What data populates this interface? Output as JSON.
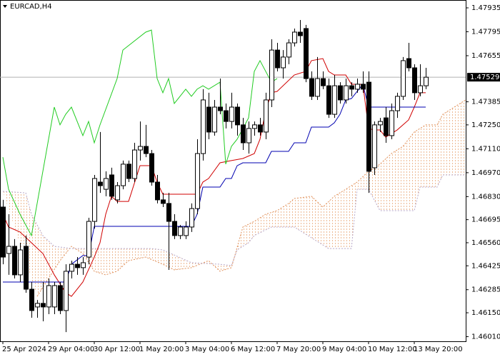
{
  "chart_data": {
    "type": "candlestick",
    "title": "EURCAD,H4",
    "categories": [
      "25 Apr 2024",
      null,
      null,
      null,
      null,
      null,
      null,
      null,
      "29 Apr 04:00",
      null,
      null,
      null,
      null,
      null,
      null,
      null,
      "30 Apr 12:00",
      null,
      null,
      null,
      null,
      null,
      null,
      null,
      "1 May 20:00",
      null,
      null,
      null,
      null,
      null,
      null,
      null,
      "3 May 04:00",
      null,
      null,
      null,
      null,
      null,
      null,
      null,
      "6 May 12:00",
      null,
      null,
      null,
      null,
      null,
      null,
      null,
      "7 May 20:00",
      null,
      null,
      null,
      null,
      null,
      null,
      null,
      "9 May 04:00",
      null,
      null,
      null,
      null,
      null,
      null,
      null,
      "10 May 12:00",
      null,
      null,
      null,
      null,
      null,
      null,
      null,
      "13 May 20:00",
      null,
      null
    ],
    "open": [
      1.46769,
      1.46497,
      1.46539,
      1.46372,
      1.46539,
      1.46288,
      1.46184,
      1.46205,
      1.46184,
      1.46184,
      1.46309,
      1.46163,
      1.46393,
      1.46434,
      1.46414,
      1.46476,
      1.46685,
      1.46915,
      1.46873,
      1.46957,
      1.46811,
      1.46894,
      1.4702,
      1.46936,
      1.47103,
      1.47124,
      1.47082,
      1.46915,
      1.46811,
      1.4679,
      1.46685,
      1.46602,
      1.46602,
      1.46652,
      1.4676,
      1.47082,
      1.47354,
      1.47208,
      1.47354,
      1.47333,
      1.4727,
      1.47354,
      1.4725,
      1.47145,
      1.47229,
      1.4725,
      1.47208,
      1.47396,
      1.47688,
      1.47584,
      1.47647,
      1.4773,
      1.47793,
      1.47814,
      1.47521,
      1.47417,
      1.47521,
      1.47479,
      1.47312,
      1.47479,
      1.47396,
      1.47479,
      1.47459,
      1.47488,
      1.475,
      1.46999,
      1.4725,
      1.47291,
      1.47187,
      1.47333,
      1.47417,
      1.47638,
      1.47584,
      1.47438,
      1.47479
    ],
    "high": [
      1.46811,
      1.46727,
      1.46581,
      1.4656,
      1.46602,
      1.4633,
      1.46225,
      1.4633,
      1.46351,
      1.4633,
      1.4633,
      1.46434,
      1.46455,
      1.46476,
      1.46476,
      1.46706,
      1.46957,
      1.47208,
      1.46978,
      1.46999,
      1.46915,
      1.47041,
      1.47041,
      1.47145,
      1.4727,
      1.4725,
      1.47103,
      1.46957,
      1.46852,
      1.46852,
      1.46727,
      1.46664,
      1.46685,
      1.4679,
      1.47166,
      1.47459,
      1.47438,
      1.47396,
      1.47521,
      1.47375,
      1.47438,
      1.47375,
      1.47291,
      1.4727,
      1.4727,
      1.47291,
      1.47438,
      1.47751,
      1.4773,
      1.47688,
      1.47751,
      1.47814,
      1.47864,
      1.47835,
      1.47563,
      1.47647,
      1.47563,
      1.47521,
      1.47542,
      1.475,
      1.47521,
      1.475,
      1.47521,
      1.47563,
      1.47563,
      1.4727,
      1.47291,
      1.47354,
      1.47375,
      1.47438,
      1.47647,
      1.4773,
      1.47605,
      1.47605,
      1.47584
    ],
    "low": [
      1.46434,
      1.46372,
      1.46351,
      1.4633,
      1.46267,
      1.46121,
      1.46121,
      1.461,
      1.46142,
      1.46142,
      1.46142,
      1.46037,
      1.46351,
      1.46372,
      1.46372,
      1.46434,
      1.46643,
      1.46852,
      1.46832,
      1.46811,
      1.4679,
      1.46873,
      1.46915,
      1.46915,
      1.47041,
      1.47061,
      1.46894,
      1.4679,
      1.46769,
      1.46401,
      1.46581,
      1.46581,
      1.46581,
      1.46623,
      1.46727,
      1.47041,
      1.47166,
      1.47187,
      1.47312,
      1.47229,
      1.47229,
      1.47187,
      1.47103,
      1.47082,
      1.47187,
      1.47187,
      1.47166,
      1.47354,
      1.47563,
      1.47521,
      1.47605,
      1.47709,
      1.4773,
      1.475,
      1.47396,
      1.47396,
      1.47459,
      1.47291,
      1.47291,
      1.47375,
      1.47375,
      1.47417,
      1.47438,
      1.47438,
      1.46852,
      1.46957,
      1.47208,
      1.47145,
      1.47166,
      1.47291,
      1.47396,
      1.47563,
      1.47396,
      1.47417,
      1.47459
    ],
    "close": [
      1.46476,
      1.46539,
      1.46372,
      1.46518,
      1.46288,
      1.46163,
      1.46205,
      1.46184,
      1.46309,
      1.46309,
      1.46163,
      1.46393,
      1.46434,
      1.46414,
      1.46443,
      1.46685,
      1.46936,
      1.46894,
      1.46936,
      1.46832,
      1.46894,
      1.4702,
      1.46936,
      1.47103,
      1.47124,
      1.47082,
      1.46915,
      1.46811,
      1.4679,
      1.46685,
      1.46602,
      1.46652,
      1.46652,
      1.4676,
      1.47082,
      1.47396,
      1.47208,
      1.47354,
      1.47333,
      1.4727,
      1.47354,
      1.4725,
      1.47145,
      1.47229,
      1.4725,
      1.47208,
      1.47396,
      1.47688,
      1.47584,
      1.47647,
      1.4773,
      1.47793,
      1.47772,
      1.47521,
      1.47417,
      1.47521,
      1.47479,
      1.47312,
      1.47479,
      1.47396,
      1.47479,
      1.47459,
      1.47488,
      1.47459,
      1.46978,
      1.4725,
      1.4727,
      1.47187,
      1.47333,
      1.47417,
      1.47626,
      1.47584,
      1.47438,
      1.47479,
      1.47529
    ],
    "up_color": "#ffffff",
    "down_color": "#000000",
    "wick_color": "#000000",
    "lines": [
      {
        "color": "#d00000",
        "x": [
          0,
          1,
          3,
          5,
          7,
          9,
          11,
          12,
          14,
          16,
          17,
          18,
          19,
          20,
          22,
          24,
          26,
          27,
          28,
          34,
          35,
          36,
          38,
          40,
          42,
          44,
          45,
          46,
          47,
          48,
          51,
          53,
          54,
          56,
          57,
          58,
          60,
          61,
          63,
          64,
          65,
          66,
          67,
          69,
          71,
          72,
          73,
          74
        ],
        "values": [
          1.46727,
          1.46652,
          1.46623,
          1.4656,
          1.46497,
          1.46372,
          1.46267,
          1.46246,
          1.4633,
          1.46476,
          1.4656,
          1.46727,
          1.46832,
          1.46802,
          1.46802,
          1.47011,
          1.47011,
          1.46915,
          1.46844,
          1.46844,
          1.46915,
          1.46936,
          1.47028,
          1.47041,
          1.47053,
          1.47082,
          1.47166,
          1.47333,
          1.47438,
          1.47446,
          1.47542,
          1.47563,
          1.47626,
          1.47638,
          1.47563,
          1.47542,
          1.47542,
          1.47488,
          1.47488,
          1.47229,
          1.4722,
          1.4722,
          1.47178,
          1.4722,
          1.47279,
          1.47354,
          1.47438,
          1.47438
        ]
      },
      {
        "color": "#0000b0",
        "x": [
          0,
          11,
          12,
          14,
          15,
          16,
          33,
          34,
          35,
          38,
          39,
          40,
          41,
          42,
          46,
          47,
          50,
          51,
          53,
          54,
          57,
          58,
          59,
          60,
          61,
          63,
          64,
          74
        ],
        "values": [
          1.4633,
          1.4633,
          1.46434,
          1.46485,
          1.46485,
          1.46656,
          1.46656,
          1.46727,
          1.46886,
          1.46886,
          1.46936,
          1.46936,
          1.47011,
          1.47028,
          1.47028,
          1.47095,
          1.47095,
          1.47145,
          1.47145,
          1.47237,
          1.47237,
          1.47262,
          1.47312,
          1.47396,
          1.47404,
          1.47488,
          1.47354,
          1.47354
        ]
      },
      {
        "color": "#22cc22",
        "x": [
          0,
          1,
          3,
          5,
          9,
          10,
          11,
          12,
          14,
          15,
          16,
          17,
          20,
          21,
          25,
          26,
          27,
          28,
          29,
          30,
          32,
          33,
          34,
          35,
          36,
          38,
          39,
          40,
          41,
          43,
          44,
          45,
          47,
          48
        ],
        "values": [
          1.47061,
          1.46873,
          1.46727,
          1.46602,
          1.47354,
          1.4725,
          1.47312,
          1.47354,
          1.47187,
          1.4727,
          1.47145,
          1.4725,
          1.47521,
          1.47688,
          1.47793,
          1.47805,
          1.47521,
          1.47438,
          1.47521,
          1.47375,
          1.47459,
          1.47417,
          1.47459,
          1.47479,
          1.47459,
          1.475,
          1.4702,
          1.47124,
          1.47166,
          1.47291,
          1.47563,
          1.47626,
          1.475,
          1.47521
        ]
      }
    ],
    "cloud": {
      "span_a": {
        "color": "#e0905a",
        "x": [
          6,
          8,
          10,
          12,
          14,
          16,
          18,
          20,
          22,
          25,
          28,
          30,
          33,
          36,
          38,
          40,
          42,
          44,
          46,
          48,
          50,
          51,
          54,
          56,
          58,
          60,
          62,
          64,
          66,
          68,
          70,
          72,
          74,
          76,
          77,
          79,
          81
        ],
        "values": [
          1.46246,
          1.46351,
          1.46455,
          1.46539,
          1.46497,
          1.46393,
          1.46372,
          1.46393,
          1.46455,
          1.46476,
          1.46434,
          1.46401,
          1.46414,
          1.46455,
          1.46393,
          1.46414,
          1.46652,
          1.46685,
          1.46727,
          1.46748,
          1.4679,
          1.46819,
          1.46832,
          1.46769,
          1.46832,
          1.46873,
          1.46915,
          1.46978,
          1.4702,
          1.47082,
          1.47124,
          1.47208,
          1.4725,
          1.4725,
          1.47312,
          1.47354,
          1.47396
        ]
      },
      "span_b": {
        "color": "#b8a8c8",
        "x": [
          0,
          4,
          5,
          7,
          9,
          12,
          16,
          26,
          28,
          33,
          38,
          40,
          41,
          43,
          44,
          47,
          51,
          57,
          61,
          62,
          64,
          66,
          72,
          73,
          76,
          77,
          81
        ],
        "values": [
          1.46861,
          1.46852,
          1.46727,
          1.46602,
          1.46539,
          1.46526,
          1.46526,
          1.46526,
          1.46518,
          1.46443,
          1.46434,
          1.46426,
          1.46518,
          1.4656,
          1.46602,
          1.46652,
          1.46652,
          1.46526,
          1.46526,
          1.46873,
          1.46873,
          1.46748,
          1.46748,
          1.46886,
          1.46886,
          1.46957,
          1.46957
        ]
      }
    },
    "last_price": 1.47529,
    "ylim": [
      1.45983,
      1.47981
    ],
    "yticks": [
      1.47935,
      1.47795,
      1.47655,
      1.47385,
      {
        "value": 1.4725,
        "label": "1.47250"
      },
      {
        "value": 1.4711,
        "label": "1.47110"
      },
      {
        "value": 1.4697,
        "label": "1.46970"
      },
      {
        "value": 1.4683,
        "label": "1.46830"
      },
      1.46695,
      {
        "value": 1.4656,
        "label": "1.46560"
      },
      1.46425,
      1.46285,
      {
        "value": 1.4615,
        "label": "1.46150"
      },
      {
        "value": 1.4601,
        "label": "1.46010"
      }
    ]
  }
}
